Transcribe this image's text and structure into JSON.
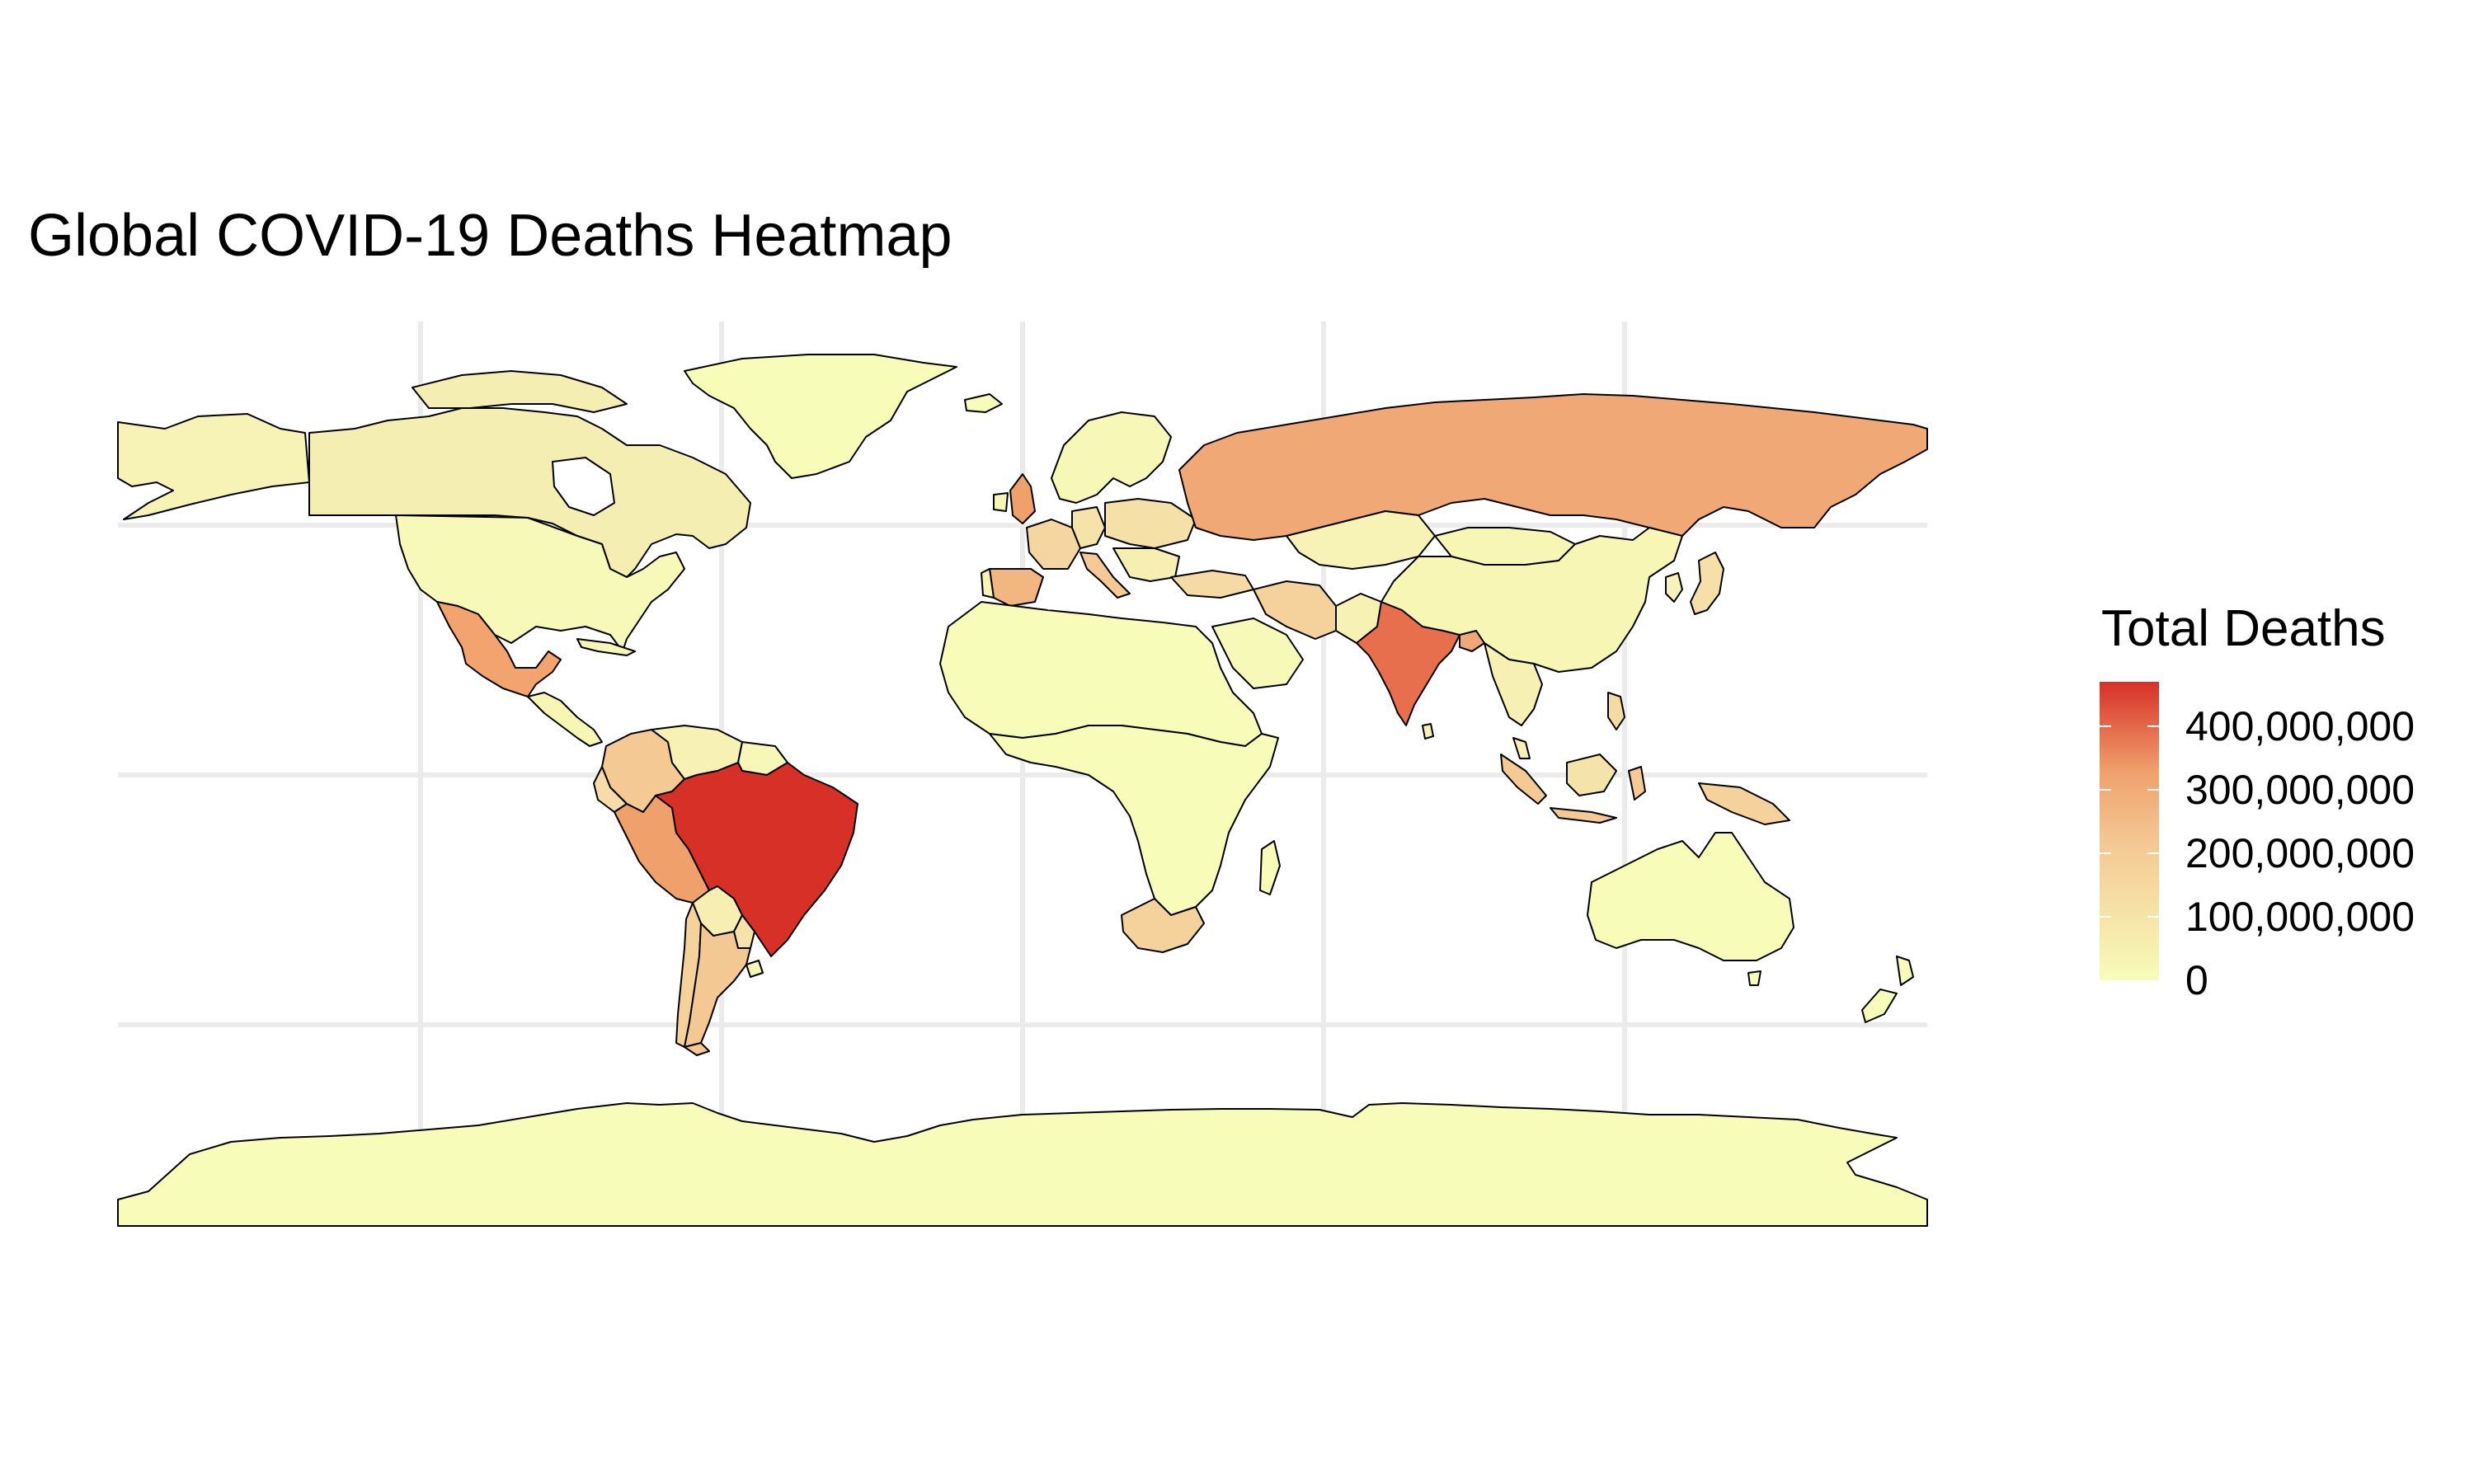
{
  "title": "Global COVID-19 Deaths Heatmap",
  "legend": {
    "title": "Total Deaths",
    "min_value": 0,
    "max_value": 470000000,
    "labels": [
      {
        "value": 400000000,
        "text": "400,000,000"
      },
      {
        "value": 300000000,
        "text": "300,000,000"
      },
      {
        "value": 200000000,
        "text": "200,000,000"
      },
      {
        "value": 100000000,
        "text": "100,000,000"
      },
      {
        "value": 0,
        "text": "0"
      }
    ],
    "color_low": "#F7FCB9",
    "color_mid": "#F4B483",
    "color_high": "#D73027"
  },
  "colors": {
    "background": "#FFFFFF",
    "grid": "#EBEBEB",
    "border": "#000000",
    "ocean": "#FFFFFF"
  },
  "chart_data": {
    "type": "heatmap",
    "title": "Global COVID-19 Deaths Heatmap",
    "legend_title": "Total Deaths",
    "legend_placement": "right",
    "grid": true,
    "regions": [
      {
        "name": "Brazil",
        "value": 470000000
      },
      {
        "name": "India",
        "value": 360000000
      },
      {
        "name": "Russia",
        "value": 240000000
      },
      {
        "name": "Mexico",
        "value": 220000000
      },
      {
        "name": "Peru",
        "value": 180000000
      },
      {
        "name": "Iran",
        "value": 140000000
      },
      {
        "name": "Argentina",
        "value": 130000000
      },
      {
        "name": "Colombia",
        "value": 120000000
      },
      {
        "name": "United Kingdom",
        "value": 140000000
      },
      {
        "name": "Spain",
        "value": 110000000
      },
      {
        "name": "South Africa",
        "value": 100000000
      },
      {
        "name": "Indonesia",
        "value": 110000000
      },
      {
        "name": "Bangladesh",
        "value": 200000000
      },
      {
        "name": "United States",
        "value": 20000000
      },
      {
        "name": "Canada",
        "value": 40000000
      },
      {
        "name": "China",
        "value": 20000000
      },
      {
        "name": "Australia",
        "value": 5000000
      },
      {
        "name": "Greenland",
        "value": 0
      },
      {
        "name": "Antarctica",
        "value": 0
      }
    ]
  }
}
